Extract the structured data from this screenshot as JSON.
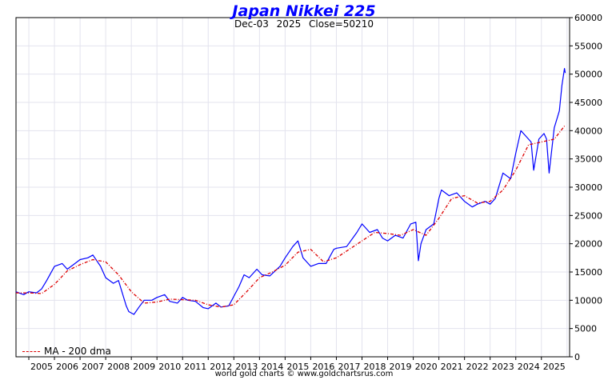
{
  "chart_data": {
    "type": "line",
    "title": "Japan Nikkei 225",
    "date": "Dec-03",
    "year": "2025",
    "close_label": "Close=50210",
    "xlabel": "",
    "ylabel": "",
    "xlim": [
      2004.5,
      2026.1
    ],
    "ylim": [
      0,
      60000
    ],
    "x_ticks": [
      "2005",
      "2006",
      "2007",
      "2008",
      "2009",
      "2010",
      "2011",
      "2012",
      "2013",
      "2014",
      "2015",
      "2016",
      "2017",
      "2018",
      "2019",
      "2020",
      "2021",
      "2022",
      "2023",
      "2024",
      "2025"
    ],
    "y_ticks": [
      0,
      5000,
      10000,
      15000,
      20000,
      25000,
      30000,
      35000,
      40000,
      45000,
      50000,
      55000,
      60000
    ],
    "grid": true,
    "legend_position": "bottom-left",
    "series": [
      {
        "name": "Nikkei 225",
        "color": "#0000ff",
        "x": [
          2004.5,
          2004.8,
          2005.0,
          2005.3,
          2005.5,
          2005.7,
          2006.0,
          2006.3,
          2006.5,
          2006.8,
          2007.0,
          2007.3,
          2007.5,
          2007.8,
          2008.0,
          2008.3,
          2008.5,
          2008.8,
          2008.9,
          2009.1,
          2009.3,
          2009.5,
          2009.8,
          2010.0,
          2010.3,
          2010.5,
          2010.8,
          2011.0,
          2011.2,
          2011.5,
          2011.8,
          2012.0,
          2012.3,
          2012.5,
          2012.8,
          2013.0,
          2013.2,
          2013.4,
          2013.6,
          2013.9,
          2014.1,
          2014.4,
          2014.8,
          2015.0,
          2015.3,
          2015.5,
          2015.7,
          2016.0,
          2016.3,
          2016.6,
          2016.9,
          2017.0,
          2017.4,
          2017.8,
          2018.0,
          2018.3,
          2018.6,
          2018.8,
          2019.0,
          2019.3,
          2019.6,
          2019.9,
          2020.1,
          2020.2,
          2020.3,
          2020.5,
          2020.8,
          2021.0,
          2021.1,
          2021.4,
          2021.7,
          2022.0,
          2022.3,
          2022.5,
          2022.8,
          2023.0,
          2023.2,
          2023.5,
          2023.8,
          2024.0,
          2024.2,
          2024.4,
          2024.6,
          2024.7,
          2024.9,
          2025.1,
          2025.2,
          2025.3,
          2025.5,
          2025.7,
          2025.8,
          2025.9,
          2025.93
        ],
        "values": [
          11500,
          11000,
          11500,
          11300,
          12000,
          13500,
          16000,
          16500,
          15500,
          16500,
          17200,
          17500,
          18000,
          16000,
          14000,
          13000,
          13500,
          9000,
          8000,
          7500,
          8800,
          10000,
          10000,
          10500,
          11000,
          9800,
          9500,
          10500,
          10000,
          9800,
          8700,
          8500,
          9500,
          8800,
          9000,
          10700,
          12400,
          14500,
          14000,
          15500,
          14500,
          14300,
          16000,
          17500,
          19500,
          20500,
          17500,
          16000,
          16500,
          16500,
          19000,
          19200,
          19500,
          22000,
          23500,
          22000,
          22500,
          21000,
          20500,
          21500,
          21000,
          23500,
          23800,
          17000,
          20000,
          22500,
          23500,
          28000,
          29500,
          28500,
          29000,
          27500,
          26500,
          27000,
          27500,
          27000,
          28000,
          32500,
          31500,
          36000,
          40000,
          39000,
          38000,
          33000,
          38500,
          39500,
          38500,
          32500,
          40500,
          43500,
          48000,
          51000,
          50210
        ]
      },
      {
        "name": "MA - 200 dma",
        "color": "#dd0000",
        "x": [
          2004.5,
          2005.0,
          2005.5,
          2006.0,
          2006.5,
          2007.0,
          2007.5,
          2008.0,
          2008.5,
          2009.0,
          2009.5,
          2010.0,
          2010.5,
          2011.0,
          2011.5,
          2012.0,
          2012.5,
          2013.0,
          2013.5,
          2014.0,
          2014.5,
          2015.0,
          2015.5,
          2016.0,
          2016.5,
          2017.0,
          2017.5,
          2018.0,
          2018.5,
          2019.0,
          2019.5,
          2020.0,
          2020.5,
          2021.0,
          2021.5,
          2022.0,
          2022.5,
          2023.0,
          2023.5,
          2024.0,
          2024.5,
          2025.0,
          2025.5,
          2025.93
        ],
        "values": [
          11300,
          11300,
          11200,
          12800,
          15200,
          16300,
          17200,
          16800,
          14500,
          11500,
          9500,
          9700,
          10200,
          10100,
          10000,
          9200,
          8800,
          9200,
          11500,
          14000,
          15000,
          16200,
          18500,
          19000,
          16800,
          17500,
          19000,
          20500,
          22000,
          21800,
          21500,
          22500,
          21500,
          24500,
          28000,
          28500,
          27200,
          27500,
          29500,
          33000,
          37500,
          38000,
          38500,
          41000
        ]
      }
    ],
    "legend_label": "MA - 200 dma",
    "footer": "world gold charts © www.goldchartsrus.com"
  }
}
